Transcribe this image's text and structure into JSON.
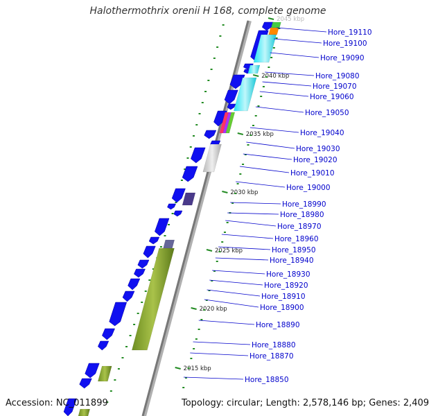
{
  "title": "Halothermothrix orenii H 168, complete genome",
  "accession": "Accession: NC_011899",
  "summary": "Topology: circular; Length: 2,578,146 bp; Genes: 2,409",
  "colors": {
    "gene": "#1010f0",
    "cyan": "#22e5f5",
    "olive": "#7a9a2a",
    "label": "#0000cc",
    "tick": "#228b22",
    "backbone": "#808080"
  },
  "kbp_ticks": [
    {
      "label": "2045 kbp",
      "pos": 2045,
      "faint": true
    },
    {
      "label": "2040 kbp",
      "pos": 2040
    },
    {
      "label": "2035 kbp",
      "pos": 2035
    },
    {
      "label": "2030 kbp",
      "pos": 2030
    },
    {
      "label": "2025 kbp",
      "pos": 2025
    },
    {
      "label": "2020 kbp",
      "pos": 2020
    },
    {
      "label": "2015 kbp",
      "pos": 2015
    }
  ],
  "genes": [
    "Hore_19110",
    "Hore_19100",
    "Hore_19090",
    "Hore_19080",
    "Hore_19070",
    "Hore_19060",
    "Hore_19050",
    "Hore_19040",
    "Hore_19030",
    "Hore_19020",
    "Hore_19010",
    "Hore_19000",
    "Hore_18990",
    "Hore_18980",
    "Hore_18970",
    "Hore_18960",
    "Hore_18950",
    "Hore_18940",
    "Hore_18930",
    "Hore_18920",
    "Hore_18910",
    "Hore_18900",
    "Hore_18890",
    "Hore_18880",
    "Hore_18870",
    "Hore_18850"
  ]
}
